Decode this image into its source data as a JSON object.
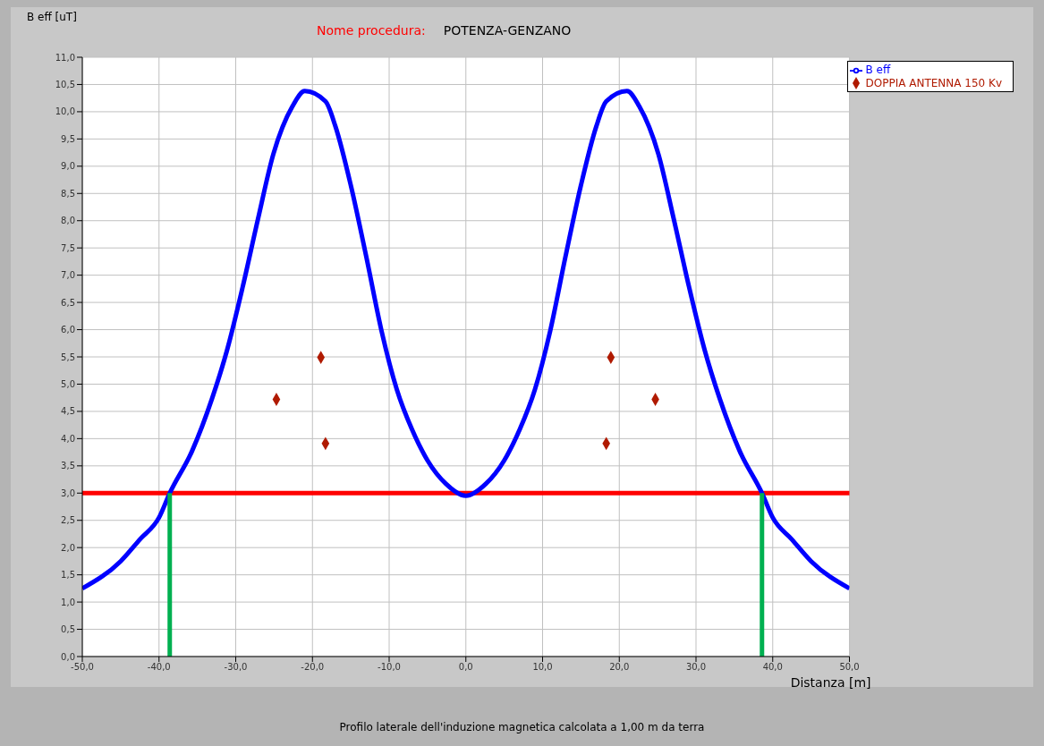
{
  "chart_data": {
    "type": "line",
    "title": "POTENZA-GENZANO",
    "subtitle": "Nome procedura:",
    "ylabel": "B eff [uT]",
    "xlabel": "Distanza [m]",
    "annotations": [
      "Profilo laterale dell'induzione magnetica calcolata a 1,00 m da terra"
    ],
    "xlim": [
      -50,
      50
    ],
    "xticks": [
      {
        "value": -50,
        "label": "-50,0"
      },
      {
        "value": -40,
        "label": "-40,0"
      },
      {
        "value": -30,
        "label": "-30,0"
      },
      {
        "value": -20,
        "label": "-20,0"
      },
      {
        "value": -10,
        "label": "-10,0"
      },
      {
        "value": 0,
        "label": "0,0"
      },
      {
        "value": 10,
        "label": "10,0"
      },
      {
        "value": 20,
        "label": "20,0"
      },
      {
        "value": 30,
        "label": "30,0"
      },
      {
        "value": 40,
        "label": "40,0"
      },
      {
        "value": 50,
        "label": "50,0"
      }
    ],
    "ylim": [
      0,
      11
    ],
    "yticks": [
      {
        "value": 0,
        "label": "0,0"
      },
      {
        "value": 0.5,
        "label": "0,5"
      },
      {
        "value": 1,
        "label": "1,0"
      },
      {
        "value": 1.5,
        "label": "1,5"
      },
      {
        "value": 2,
        "label": "2,0"
      },
      {
        "value": 2.5,
        "label": "2,5"
      },
      {
        "value": 3,
        "label": "3,0"
      },
      {
        "value": 3.5,
        "label": "3,5"
      },
      {
        "value": 4,
        "label": "4,0"
      },
      {
        "value": 4.5,
        "label": "4,5"
      },
      {
        "value": 5,
        "label": "5,0"
      },
      {
        "value": 5.5,
        "label": "5,5"
      },
      {
        "value": 6,
        "label": "6,0"
      },
      {
        "value": 6.5,
        "label": "6,5"
      },
      {
        "value": 7,
        "label": "7,0"
      },
      {
        "value": 7.5,
        "label": "7,5"
      },
      {
        "value": 8,
        "label": "8,0"
      },
      {
        "value": 8.5,
        "label": "8,5"
      },
      {
        "value": 9,
        "label": "9,0"
      },
      {
        "value": 9.5,
        "label": "9,5"
      },
      {
        "value": 10,
        "label": "10,0"
      },
      {
        "value": 10.5,
        "label": "10,5"
      },
      {
        "value": 11,
        "label": "11,0"
      }
    ],
    "grid": true,
    "legend": "top right",
    "ref_lines": [
      {
        "axis": "y",
        "value": 3,
        "color": "#ff0000"
      }
    ],
    "series": [
      {
        "name": "B eff",
        "type": "line",
        "color": "#0000ff",
        "x": [
          -50,
          -45,
          -42.5,
          -40,
          -38.6,
          -35.7,
          -33.1,
          -31.1,
          -29.1,
          -27.1,
          -25.1,
          -22.6,
          -21,
          -18.3,
          -17,
          -15,
          -13,
          -11,
          -9,
          -7,
          -5,
          -2.6,
          0,
          2.6,
          5,
          7,
          9,
          11,
          13,
          15,
          17,
          18.3,
          21,
          22.6,
          25.1,
          27.1,
          29.1,
          31.1,
          33.1,
          35.7,
          38.6,
          40,
          42.5,
          45,
          50
        ],
        "values": [
          1.25,
          1.75,
          2.15,
          2.55,
          3.0,
          3.77,
          4.73,
          5.64,
          6.78,
          8.03,
          9.22,
          10.1,
          10.38,
          10.19,
          9.73,
          8.65,
          7.35,
          5.98,
          4.9,
          4.16,
          3.6,
          3.17,
          2.95,
          3.17,
          3.6,
          4.16,
          4.9,
          5.98,
          7.35,
          8.65,
          9.73,
          10.19,
          10.38,
          10.1,
          9.22,
          8.03,
          6.78,
          5.64,
          4.73,
          3.77,
          3.0,
          2.55,
          2.15,
          1.75,
          1.25
        ]
      },
      {
        "name": "DOPPIA ANTENNA 150 Kv",
        "type": "scatter",
        "color": "#b01a00",
        "marker": "diamond",
        "x": [
          -24.7,
          -18.9,
          -18.3,
          18.3,
          18.9,
          24.7
        ],
        "values": [
          4.72,
          5.49,
          3.91,
          3.91,
          5.49,
          4.72
        ]
      },
      {
        "type": "line",
        "color": "#00b050",
        "x": [
          -38.6,
          -38.6
        ],
        "values": [
          0,
          3
        ]
      },
      {
        "type": "line",
        "color": "#00b050",
        "x": [
          38.6,
          38.6
        ],
        "values": [
          0,
          3
        ]
      }
    ]
  }
}
